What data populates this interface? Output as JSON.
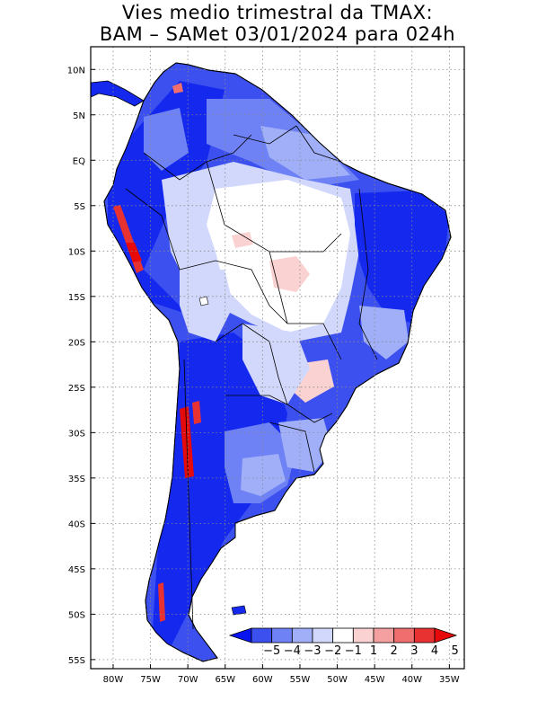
{
  "title": {
    "line1": "Vies medio trimestral da TMAX:",
    "line2": "BAM – SAMet 03/01/2024  para 024h"
  },
  "axes": {
    "lon_labels": [
      "80W",
      "75W",
      "70W",
      "65W",
      "60W",
      "55W",
      "50W",
      "45W",
      "40W",
      "35W"
    ],
    "lon_values": [
      -80,
      -75,
      -70,
      -65,
      -60,
      -55,
      -50,
      -45,
      -40,
      -35
    ],
    "lat_labels": [
      "10N",
      "5N",
      "EQ",
      "5S",
      "10S",
      "15S",
      "20S",
      "25S",
      "30S",
      "35S",
      "40S",
      "45S",
      "50S",
      "55S"
    ],
    "lat_values": [
      10,
      5,
      0,
      -5,
      -10,
      -15,
      -20,
      -25,
      -30,
      -35,
      -40,
      -45,
      -50,
      -55
    ],
    "lon_range": [
      -83,
      -33
    ],
    "lat_range": [
      12.5,
      -56
    ],
    "grid": "dotted"
  },
  "colorbar": {
    "labels": [
      "−5",
      "−4",
      "−3",
      "−2",
      "−1",
      "1",
      "2",
      "3",
      "4",
      "5"
    ],
    "colors": [
      "#0a14f0",
      "#3c50f0",
      "#6e82f5",
      "#a0aff8",
      "#d2d8fb",
      "#ffffff",
      "#fbd2d2",
      "#f5a0a0",
      "#f06e6e",
      "#e83232",
      "#e60a0a"
    ]
  },
  "map_colors": {
    "strong_cold": "#1428ee",
    "cold": "#3c50f0",
    "mild_cold": "#6e82f5",
    "light_cold": "#a0aff8",
    "very_light_cold": "#d2d8fb",
    "neutral": "#ffffff",
    "light_warm": "#fbd2d2",
    "warm": "#f06e6e",
    "strong_warm": "#e60a0a"
  }
}
